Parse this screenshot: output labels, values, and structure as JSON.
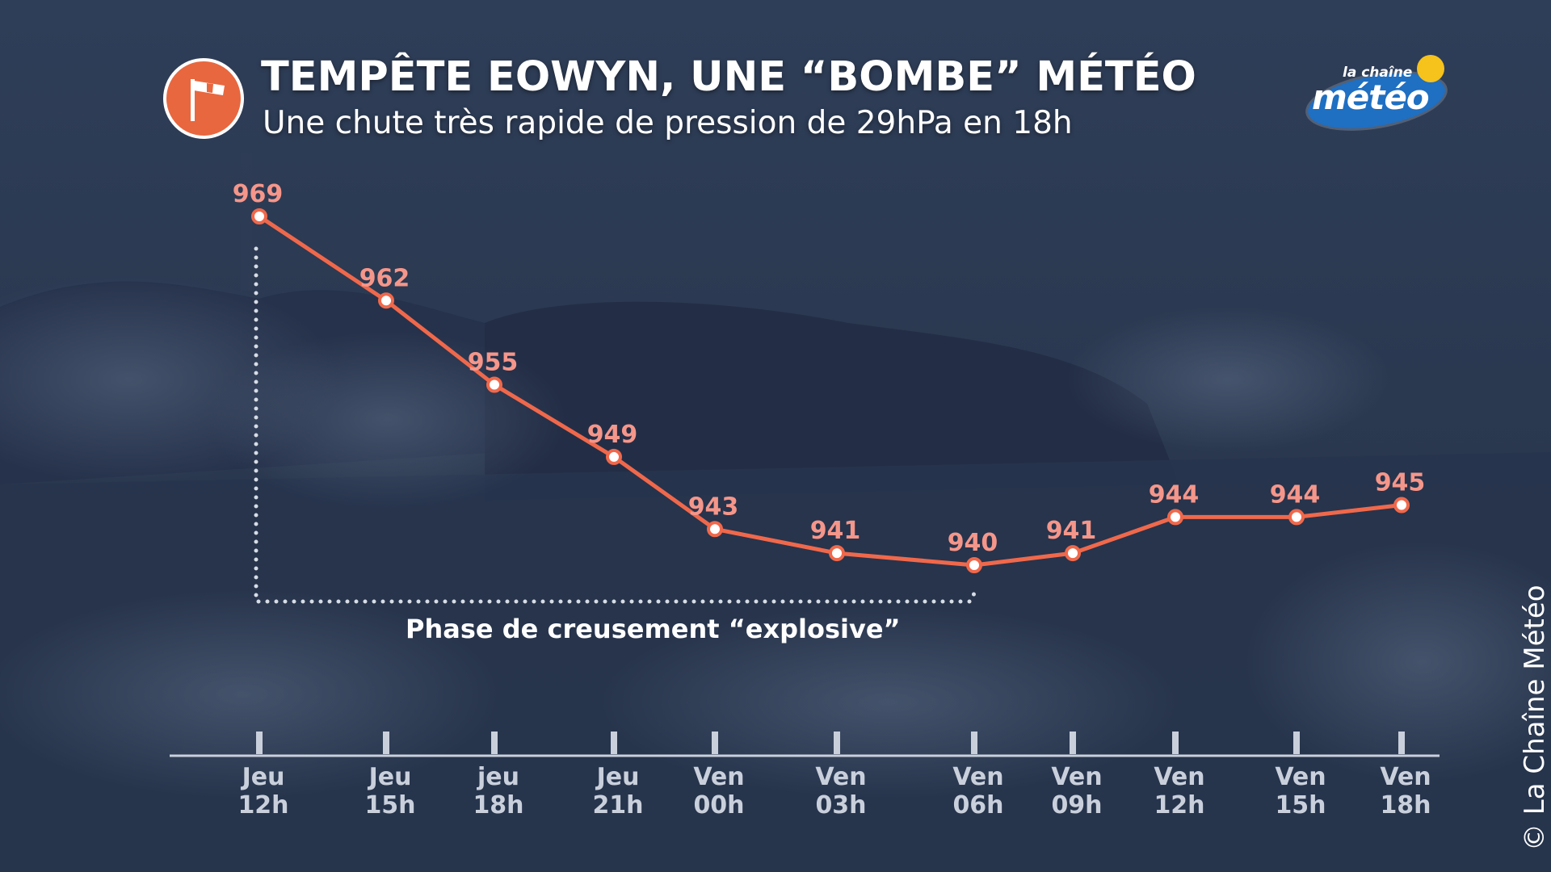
{
  "header": {
    "title": "TEMPÊTE EOWYN, UNE “BOMBE” MÉTÉO",
    "subtitle": "Une chute très rapide de pression de 29hPa en 18h",
    "icon": "windsock-icon"
  },
  "logo": {
    "small_text": "la chaîne",
    "big_text": "météo"
  },
  "credit": "© La Chaîne Météo",
  "annotation": {
    "label": "Phase de creusement “explosive”"
  },
  "colors": {
    "line": "#f0684b",
    "value_label": "#f5968a",
    "axis_text": "#c9d0dc",
    "accent_icon": "#e8673f",
    "background": "#2b3a53"
  },
  "chart_data": {
    "type": "line",
    "title": "TEMPÊTE EOWYN, UNE “BOMBE” MÉTÉO",
    "subtitle": "Une chute très rapide de pression de 29hPa en 18h",
    "xlabel": "",
    "ylabel": "",
    "grid": false,
    "legend": "none",
    "ylim": [
      930,
      975
    ],
    "categories": [
      [
        "Jeu",
        "12h"
      ],
      [
        "Jeu",
        "15h"
      ],
      [
        "jeu",
        "18h"
      ],
      [
        "Jeu",
        "21h"
      ],
      [
        "Ven",
        "00h"
      ],
      [
        "Ven",
        "03h"
      ],
      [
        "Ven",
        "06h"
      ],
      [
        "Ven",
        "09h"
      ],
      [
        "Ven",
        "12h"
      ],
      [
        "Ven",
        "15h"
      ],
      [
        "Ven",
        "18h"
      ]
    ],
    "values": [
      969,
      962,
      955,
      949,
      943,
      941,
      940,
      941,
      944,
      944,
      945
    ],
    "data_labels": [
      "969",
      "962",
      "955",
      "949",
      "943",
      "941",
      "940",
      "941",
      "944",
      "944",
      "945"
    ],
    "highlight_range": {
      "from": "Jeu 12h",
      "to": "Ven 06h",
      "label": "Phase de creusement “explosive”"
    }
  }
}
